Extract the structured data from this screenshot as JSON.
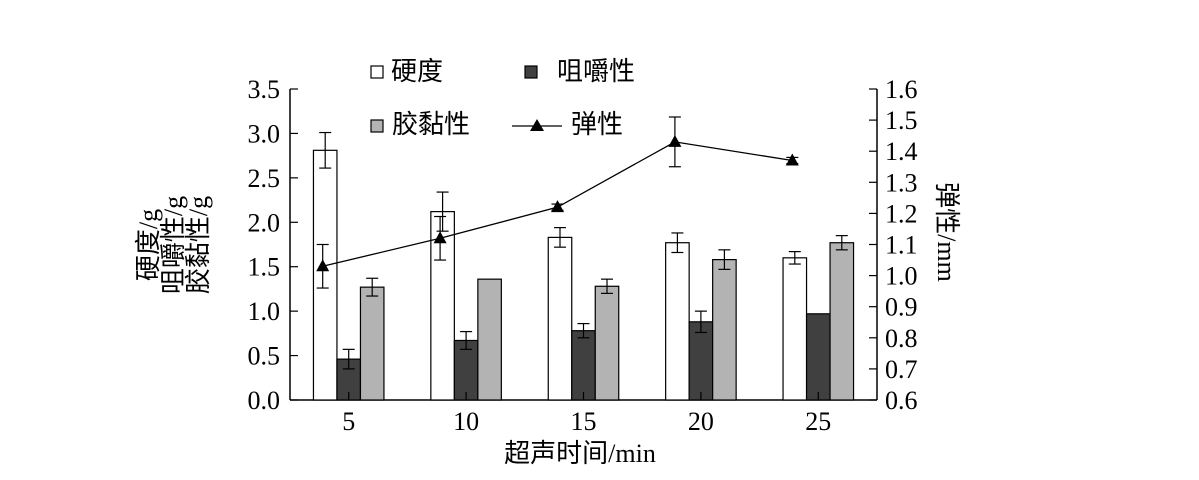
{
  "chart_data": {
    "type": "bar",
    "categories": [
      "5",
      "10",
      "15",
      "20",
      "25"
    ],
    "xlabel": "超声时间/min",
    "ylabel_left_lines": [
      "硬度/g",
      "咀嚼性/g",
      "胶黏性/g"
    ],
    "ylabel_right": "弹性/mm",
    "ylim_left": [
      0,
      3.5
    ],
    "yticks_left": [
      "0.0",
      "0.5",
      "1.0",
      "1.5",
      "2.0",
      "2.5",
      "3.0",
      "3.5"
    ],
    "ylim_right": [
      0.6,
      1.6
    ],
    "yticks_right": [
      "0.6",
      "0.7",
      "0.8",
      "0.9",
      "1.0",
      "1.1",
      "1.2",
      "1.3",
      "1.4",
      "1.5",
      "1.6"
    ],
    "grid": false,
    "legend_position": "top",
    "series": [
      {
        "name": "硬度",
        "kind": "bar",
        "axis": "left",
        "color": "#ffffff",
        "values": [
          2.81,
          2.12,
          1.83,
          1.77,
          1.6
        ],
        "errors": [
          0.2,
          0.22,
          0.11,
          0.11,
          0.07
        ]
      },
      {
        "name": "咀嚼性",
        "kind": "bar",
        "axis": "left",
        "color": "#404040",
        "values": [
          0.46,
          0.67,
          0.78,
          0.88,
          0.97
        ],
        "errors": [
          0.11,
          0.1,
          0.08,
          0.12,
          0.0
        ]
      },
      {
        "name": "胶黏性",
        "kind": "bar",
        "axis": "left",
        "color": "#b3b3b3",
        "values": [
          1.27,
          1.36,
          1.28,
          1.58,
          1.77
        ],
        "errors": [
          0.1,
          0.0,
          0.08,
          0.11,
          0.08
        ]
      },
      {
        "name": "弹性",
        "kind": "line",
        "axis": "right",
        "marker": "triangle",
        "color": "#000000",
        "values": [
          1.03,
          1.12,
          1.22,
          1.43,
          1.37
        ],
        "errors": [
          0.07,
          0.07,
          0.01,
          0.08,
          0.01
        ]
      }
    ]
  }
}
